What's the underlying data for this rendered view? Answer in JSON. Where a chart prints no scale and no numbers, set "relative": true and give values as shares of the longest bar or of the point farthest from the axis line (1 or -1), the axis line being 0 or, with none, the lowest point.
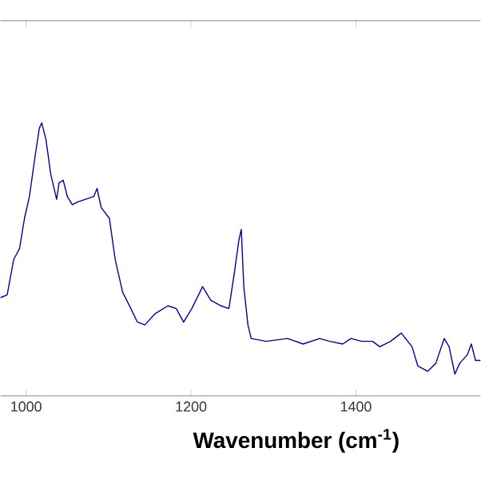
{
  "chart_data": {
    "type": "line",
    "xlabel": "Wavenumber (cm$^{-1}$)",
    "relative": true,
    "xlim": [
      969,
      1551
    ],
    "xticks": [
      1000,
      1200,
      1400
    ],
    "color": "#0000a0",
    "marker": "none",
    "line_style": "solid",
    "x": [
      969,
      977,
      985,
      992,
      998,
      1004,
      1011,
      1016,
      1019,
      1024,
      1030,
      1037,
      1040,
      1045,
      1050,
      1056,
      1062,
      1072,
      1082,
      1086,
      1091,
      1101,
      1108,
      1117,
      1127,
      1135,
      1144,
      1156,
      1172,
      1182,
      1191,
      1201,
      1214,
      1224,
      1236,
      1246,
      1253,
      1258,
      1261,
      1264,
      1269,
      1273,
      1291,
      1317,
      1336,
      1356,
      1368,
      1384,
      1394,
      1407,
      1420,
      1429,
      1442,
      1455,
      1468,
      1475,
      1487,
      1497,
      1507,
      1513,
      1520,
      1526,
      1535,
      1540,
      1545,
      1551
    ],
    "values": [
      0.36,
      0.37,
      0.5,
      0.54,
      0.65,
      0.73,
      0.88,
      0.98,
      1.0,
      0.94,
      0.81,
      0.72,
      0.78,
      0.79,
      0.73,
      0.7,
      0.71,
      0.72,
      0.73,
      0.76,
      0.69,
      0.65,
      0.5,
      0.38,
      0.32,
      0.27,
      0.26,
      0.3,
      0.33,
      0.32,
      0.27,
      0.32,
      0.4,
      0.35,
      0.33,
      0.32,
      0.46,
      0.57,
      0.61,
      0.4,
      0.26,
      0.21,
      0.2,
      0.21,
      0.19,
      0.21,
      0.2,
      0.19,
      0.21,
      0.2,
      0.2,
      0.18,
      0.2,
      0.23,
      0.18,
      0.11,
      0.09,
      0.12,
      0.21,
      0.18,
      0.08,
      0.12,
      0.15,
      0.19,
      0.13,
      0.13
    ]
  }
}
